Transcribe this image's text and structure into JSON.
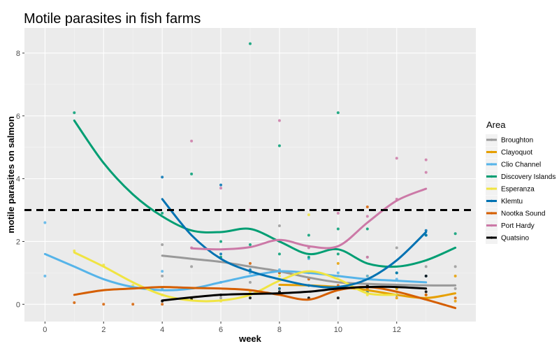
{
  "chart_data": {
    "type": "scatter",
    "title": "Motile parasites in fish farms",
    "xlabel": "week",
    "ylabel": "motile parasites on salmon",
    "xlim": [
      -0.7,
      14.7
    ],
    "ylim": [
      -0.55,
      8.8
    ],
    "x_ticks": [
      0,
      2,
      4,
      6,
      8,
      10,
      12
    ],
    "y_ticks": [
      0,
      2,
      4,
      6,
      8
    ],
    "threshold": 3,
    "grid": true,
    "legend_title": "Area",
    "legend_position": "right",
    "series": [
      {
        "name": "Broughton",
        "color": "#999999",
        "points": [
          [
            4,
            1.9
          ],
          [
            4,
            0.9
          ],
          [
            5,
            1.2
          ],
          [
            6,
            0.2
          ],
          [
            7,
            0.7
          ],
          [
            8,
            2.5
          ],
          [
            8,
            1.0
          ],
          [
            9,
            0.6
          ],
          [
            10,
            0.9
          ],
          [
            10,
            0.5
          ],
          [
            11,
            1.5
          ],
          [
            11,
            0.6
          ],
          [
            12,
            1.8
          ],
          [
            12,
            0.5
          ],
          [
            13,
            1.2
          ],
          [
            14,
            1.2
          ],
          [
            14,
            0.5
          ]
        ],
        "smooth": [
          [
            4,
            1.55
          ],
          [
            5,
            1.45
          ],
          [
            6,
            1.35
          ],
          [
            7,
            1.2
          ],
          [
            8,
            1.05
          ],
          [
            9,
            0.85
          ],
          [
            10,
            0.7
          ],
          [
            11,
            0.65
          ],
          [
            12,
            0.62
          ],
          [
            13,
            0.6
          ],
          [
            14,
            0.6
          ]
        ]
      },
      {
        "name": "Clayoquot",
        "color": "#E69F00",
        "points": [
          [
            8,
            0.5
          ],
          [
            9,
            1.0
          ],
          [
            10,
            1.3
          ],
          [
            10,
            0.5
          ],
          [
            11,
            0.9
          ],
          [
            12,
            0.5
          ],
          [
            12,
            0.2
          ],
          [
            13,
            0.3
          ],
          [
            14,
            0.9
          ],
          [
            14,
            0.1
          ]
        ],
        "smooth": [
          [
            8,
            0.62
          ],
          [
            9,
            0.6
          ],
          [
            10,
            0.55
          ],
          [
            11,
            0.45
          ],
          [
            12,
            0.3
          ],
          [
            13,
            0.2
          ],
          [
            14,
            0.35
          ]
        ]
      },
      {
        "name": "Clio Channel",
        "color": "#56B4E9",
        "points": [
          [
            0,
            2.6
          ],
          [
            0,
            0.9
          ],
          [
            4,
            1.05
          ],
          [
            4,
            0.5
          ],
          [
            6,
            0.7
          ],
          [
            7,
            1.0
          ],
          [
            8,
            1.1
          ],
          [
            9,
            1.45
          ],
          [
            10,
            1.0
          ],
          [
            11,
            0.9
          ],
          [
            12,
            0.8
          ],
          [
            13,
            0.9
          ]
        ],
        "smooth": [
          [
            0,
            1.6
          ],
          [
            1,
            1.2
          ],
          [
            2,
            0.8
          ],
          [
            3,
            0.55
          ],
          [
            4,
            0.45
          ],
          [
            5,
            0.5
          ],
          [
            6,
            0.7
          ],
          [
            7,
            0.9
          ],
          [
            8,
            1.05
          ],
          [
            9,
            1.0
          ],
          [
            10,
            0.9
          ],
          [
            11,
            0.8
          ],
          [
            12,
            0.75
          ],
          [
            13,
            0.7
          ]
        ]
      },
      {
        "name": "Discovery Islands",
        "color": "#009E73",
        "points": [
          [
            1,
            6.1
          ],
          [
            4,
            2.9
          ],
          [
            5,
            4.15
          ],
          [
            6,
            2.0
          ],
          [
            6,
            1.5
          ],
          [
            7,
            8.3
          ],
          [
            7,
            1.9
          ],
          [
            8,
            5.05
          ],
          [
            8,
            1.6
          ],
          [
            9,
            2.2
          ],
          [
            9,
            1.5
          ],
          [
            10,
            6.1
          ],
          [
            10,
            2.4
          ],
          [
            10,
            1.6
          ],
          [
            11,
            2.4
          ],
          [
            12,
            1.0
          ],
          [
            13,
            2.2
          ],
          [
            14,
            2.25
          ]
        ],
        "smooth": [
          [
            1,
            5.85
          ],
          [
            2,
            4.5
          ],
          [
            3,
            3.5
          ],
          [
            4,
            2.8
          ],
          [
            5,
            2.35
          ],
          [
            6,
            2.3
          ],
          [
            7,
            2.4
          ],
          [
            8,
            2.0
          ],
          [
            9,
            1.6
          ],
          [
            10,
            1.75
          ],
          [
            11,
            1.3
          ],
          [
            12,
            1.2
          ],
          [
            13,
            1.4
          ],
          [
            14,
            1.8
          ]
        ]
      },
      {
        "name": "Esperanza",
        "color": "#F0E442",
        "points": [
          [
            1,
            1.7
          ],
          [
            2,
            1.25
          ],
          [
            3,
            0.6
          ],
          [
            4,
            0.3
          ],
          [
            5,
            0.2
          ],
          [
            6,
            0.1
          ],
          [
            7,
            0.4
          ],
          [
            8,
            0.9
          ],
          [
            9,
            2.85
          ],
          [
            9,
            1.0
          ],
          [
            10,
            0.9
          ],
          [
            11,
            0.3
          ],
          [
            12,
            0.4
          ]
        ],
        "smooth": [
          [
            1,
            1.65
          ],
          [
            2,
            1.2
          ],
          [
            3,
            0.7
          ],
          [
            4,
            0.3
          ],
          [
            5,
            0.12
          ],
          [
            6,
            0.12
          ],
          [
            7,
            0.3
          ],
          [
            8,
            0.75
          ],
          [
            9,
            1.05
          ],
          [
            10,
            0.8
          ],
          [
            11,
            0.35
          ],
          [
            12,
            0.3
          ]
        ]
      },
      {
        "name": "Klemtu",
        "color": "#0072B2",
        "points": [
          [
            4,
            4.05
          ],
          [
            6,
            3.8
          ],
          [
            6,
            1.6
          ],
          [
            7,
            1.1
          ],
          [
            8,
            0.5
          ],
          [
            9,
            0.6
          ],
          [
            10,
            0.5
          ],
          [
            11,
            0.4
          ],
          [
            12,
            1.0
          ],
          [
            13,
            2.35
          ],
          [
            13,
            2.2
          ]
        ],
        "smooth": [
          [
            4,
            3.35
          ],
          [
            5,
            2.2
          ],
          [
            6,
            1.45
          ],
          [
            7,
            1.05
          ],
          [
            8,
            0.8
          ],
          [
            9,
            0.6
          ],
          [
            10,
            0.55
          ],
          [
            11,
            0.8
          ],
          [
            12,
            1.4
          ],
          [
            13,
            2.3
          ]
        ]
      },
      {
        "name": "Nootka Sound",
        "color": "#D55E00",
        "points": [
          [
            1,
            0.05
          ],
          [
            2,
            0.0
          ],
          [
            3,
            0.0
          ],
          [
            4,
            0.0
          ],
          [
            7,
            1.3
          ],
          [
            8,
            1.0
          ],
          [
            9,
            0.8
          ],
          [
            10,
            0.6
          ],
          [
            11,
            3.1
          ],
          [
            11,
            0.5
          ],
          [
            12,
            0.3
          ],
          [
            13,
            0.3
          ],
          [
            14,
            0.2
          ]
        ],
        "smooth": [
          [
            1,
            0.3
          ],
          [
            2,
            0.45
          ],
          [
            3,
            0.5
          ],
          [
            4,
            0.55
          ],
          [
            5,
            0.52
          ],
          [
            6,
            0.5
          ],
          [
            7,
            0.45
          ],
          [
            8,
            0.3
          ],
          [
            9,
            0.15
          ],
          [
            10,
            0.45
          ],
          [
            11,
            0.55
          ],
          [
            12,
            0.4
          ],
          [
            13,
            0.15
          ],
          [
            14,
            -0.12
          ]
        ]
      },
      {
        "name": "Port Hardy",
        "color": "#CC79A7",
        "points": [
          [
            5,
            5.2
          ],
          [
            5,
            1.8
          ],
          [
            6,
            3.7
          ],
          [
            7,
            3.0
          ],
          [
            8,
            5.85
          ],
          [
            8,
            2.0
          ],
          [
            9,
            1.8
          ],
          [
            10,
            2.9
          ],
          [
            11,
            2.8
          ],
          [
            11,
            1.5
          ],
          [
            12,
            4.65
          ],
          [
            12,
            3.35
          ],
          [
            13,
            4.6
          ],
          [
            13,
            4.2
          ]
        ],
        "smooth": [
          [
            5,
            1.78
          ],
          [
            6,
            1.75
          ],
          [
            7,
            1.82
          ],
          [
            8,
            2.05
          ],
          [
            9,
            1.85
          ],
          [
            10,
            1.85
          ],
          [
            11,
            2.6
          ],
          [
            12,
            3.3
          ],
          [
            13,
            3.68
          ]
        ]
      },
      {
        "name": "Quatsino",
        "color": "#000000",
        "points": [
          [
            4,
            0.1
          ],
          [
            5,
            0.15
          ],
          [
            6,
            0.3
          ],
          [
            7,
            0.2
          ],
          [
            8,
            0.4
          ],
          [
            9,
            0.2
          ],
          [
            10,
            0.2
          ],
          [
            11,
            0.6
          ],
          [
            12,
            0.3
          ],
          [
            13,
            0.9
          ],
          [
            13,
            0.4
          ]
        ],
        "smooth": [
          [
            4,
            0.12
          ],
          [
            5,
            0.22
          ],
          [
            6,
            0.3
          ],
          [
            7,
            0.33
          ],
          [
            8,
            0.35
          ],
          [
            9,
            0.4
          ],
          [
            10,
            0.5
          ],
          [
            11,
            0.55
          ],
          [
            12,
            0.55
          ],
          [
            13,
            0.5
          ]
        ]
      }
    ]
  }
}
